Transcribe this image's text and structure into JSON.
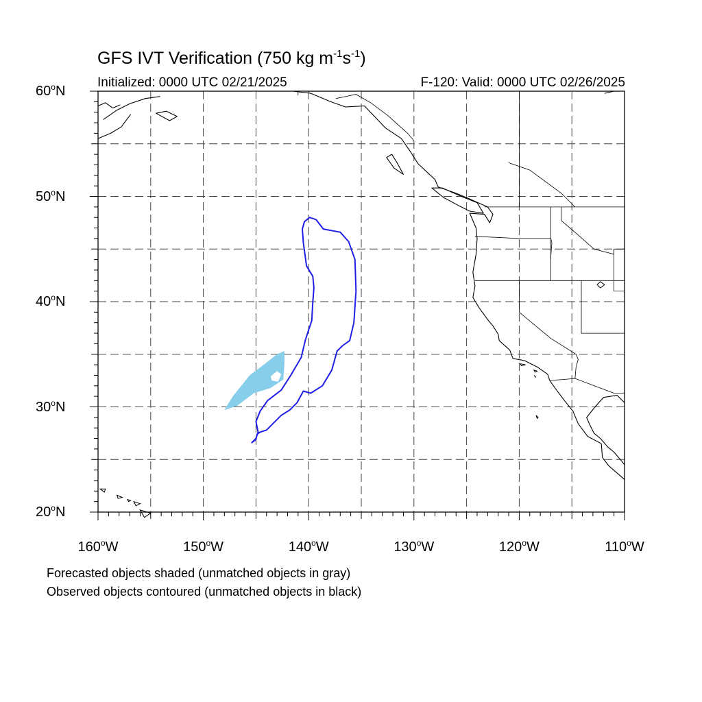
{
  "title": {
    "main_prefix": "GFS IVT Verification (750 kg m",
    "exp1": "-1",
    "mid": "s",
    "exp2": "-1",
    "suffix": ")"
  },
  "subtitle": {
    "initialized": "Initialized: 0000 UTC 02/21/2025",
    "valid": "F-120: Valid: 0000 UTC 02/26/2025"
  },
  "map": {
    "lon_range": [
      -160,
      -110
    ],
    "lat_range": [
      20,
      60
    ],
    "grid": "dashed every 5 degrees",
    "lat_labels": [
      {
        "lat": 60,
        "num": "60",
        "suffix": "N"
      },
      {
        "lat": 50,
        "num": "50",
        "suffix": "N"
      },
      {
        "lat": 40,
        "num": "40",
        "suffix": "N"
      },
      {
        "lat": 30,
        "num": "30",
        "suffix": "N"
      },
      {
        "lat": 20,
        "num": "20",
        "suffix": "N"
      }
    ],
    "lon_labels": [
      {
        "lon": -160,
        "num": "160",
        "suffix": "W"
      },
      {
        "lon": -150,
        "num": "150",
        "suffix": "W"
      },
      {
        "lon": -140,
        "num": "140",
        "suffix": "W"
      },
      {
        "lon": -130,
        "num": "130",
        "suffix": "W"
      },
      {
        "lon": -120,
        "num": "120",
        "suffix": "W"
      },
      {
        "lon": -110,
        "num": "110",
        "suffix": "W"
      }
    ],
    "colors": {
      "forecast_fill": "#87ceeb",
      "observed_contour": "#1f1fe6",
      "coast": "#000000"
    },
    "forecast_object": [
      [
        -148.0,
        29.7
      ],
      [
        -147.2,
        31.0
      ],
      [
        -145.6,
        33.0
      ],
      [
        -144.4,
        33.9
      ],
      [
        -143.0,
        35.0
      ],
      [
        -142.3,
        35.3
      ],
      [
        -142.3,
        34.1
      ],
      [
        -142.4,
        32.6
      ],
      [
        -143.6,
        31.8
      ],
      [
        -145.2,
        31.3
      ],
      [
        -146.8,
        30.1
      ],
      [
        -148.0,
        29.7
      ]
    ],
    "forecast_hole": [
      [
        -143.6,
        32.9
      ],
      [
        -143.0,
        33.4
      ],
      [
        -142.6,
        33.1
      ],
      [
        -142.9,
        32.4
      ],
      [
        -143.5,
        32.5
      ]
    ],
    "observed_object": [
      [
        -140.4,
        47.6
      ],
      [
        -139.9,
        48.0
      ],
      [
        -139.3,
        47.8
      ],
      [
        -138.6,
        46.9
      ],
      [
        -137.0,
        46.6
      ],
      [
        -136.2,
        45.7
      ],
      [
        -135.6,
        44.0
      ],
      [
        -135.5,
        41.0
      ],
      [
        -135.7,
        38.0
      ],
      [
        -136.1,
        36.3
      ],
      [
        -136.8,
        35.8
      ],
      [
        -137.3,
        35.3
      ],
      [
        -137.8,
        33.5
      ],
      [
        -138.7,
        32.0
      ],
      [
        -139.8,
        31.3
      ],
      [
        -140.5,
        31.5
      ],
      [
        -141.1,
        30.4
      ],
      [
        -141.8,
        29.7
      ],
      [
        -142.6,
        29.2
      ],
      [
        -143.4,
        28.4
      ],
      [
        -144.0,
        27.8
      ],
      [
        -144.6,
        27.6
      ],
      [
        -144.9,
        27.4
      ],
      [
        -145.0,
        26.9
      ],
      [
        -145.4,
        26.6
      ],
      [
        -145.0,
        27.0
      ],
      [
        -144.8,
        27.6
      ],
      [
        -145.0,
        28.6
      ],
      [
        -144.6,
        29.6
      ],
      [
        -143.9,
        30.6
      ],
      [
        -142.6,
        31.6
      ],
      [
        -141.7,
        33.0
      ],
      [
        -140.7,
        34.7
      ],
      [
        -140.3,
        36.4
      ],
      [
        -139.7,
        38.2
      ],
      [
        -139.6,
        40.0
      ],
      [
        -139.5,
        41.3
      ],
      [
        -139.6,
        42.4
      ],
      [
        -140.2,
        43.4
      ],
      [
        -140.5,
        45.6
      ],
      [
        -140.6,
        46.9
      ],
      [
        -140.4,
        47.6
      ]
    ],
    "coast_lines": [
      [
        [
          -110.0,
          23.1
        ],
        [
          -111.5,
          24.4
        ],
        [
          -112.1,
          25.2
        ],
        [
          -112.2,
          26.5
        ],
        [
          -113.5,
          27.2
        ],
        [
          -114.4,
          28.4
        ],
        [
          -114.9,
          29.6
        ],
        [
          -115.7,
          30.6
        ],
        [
          -116.6,
          31.8
        ],
        [
          -117.1,
          32.5
        ],
        [
          -117.3,
          33.1
        ],
        [
          -118.3,
          33.8
        ],
        [
          -119.5,
          34.4
        ],
        [
          -120.6,
          34.6
        ],
        [
          -120.9,
          35.4
        ],
        [
          -121.9,
          36.3
        ],
        [
          -122.0,
          36.9
        ],
        [
          -122.5,
          37.7
        ],
        [
          -123.0,
          38.3
        ],
        [
          -123.8,
          39.4
        ],
        [
          -124.4,
          40.4
        ],
        [
          -124.2,
          41.5
        ],
        [
          -124.4,
          42.8
        ],
        [
          -124.1,
          44.5
        ],
        [
          -124.0,
          46.0
        ],
        [
          -124.1,
          47.0
        ],
        [
          -124.7,
          48.4
        ],
        [
          -123.3,
          48.3
        ],
        [
          -122.8,
          47.5
        ],
        [
          -122.5,
          48.3
        ],
        [
          -123.0,
          49.0
        ],
        [
          -124.8,
          49.8
        ],
        [
          -126.0,
          50.3
        ],
        [
          -127.7,
          50.9
        ],
        [
          -128.0,
          51.6
        ],
        [
          -129.6,
          53.1
        ],
        [
          -130.3,
          54.2
        ],
        [
          -131.2,
          55.5
        ],
        [
          -132.7,
          56.5
        ],
        [
          -134.7,
          58.6
        ],
        [
          -136.5,
          58.5
        ],
        [
          -137.9,
          59.0
        ],
        [
          -139.8,
          59.8
        ],
        [
          -141.5,
          60.0
        ]
      ],
      [
        [
          -110.0,
          30.4
        ],
        [
          -110.7,
          31.1
        ],
        [
          -112.0,
          30.9
        ],
        [
          -112.8,
          30.0
        ],
        [
          -113.6,
          29.0
        ],
        [
          -113.3,
          28.3
        ],
        [
          -112.9,
          27.5
        ],
        [
          -112.3,
          27.0
        ],
        [
          -111.6,
          26.2
        ],
        [
          -111.0,
          25.7
        ],
        [
          -110.4,
          25.0
        ],
        [
          -110.0,
          24.5
        ]
      ],
      [
        [
          -125.5,
          50.0
        ],
        [
          -124.0,
          49.4
        ],
        [
          -123.4,
          48.4
        ],
        [
          -124.7,
          48.6
        ],
        [
          -125.7,
          49.1
        ],
        [
          -127.2,
          49.9
        ],
        [
          -128.3,
          50.8
        ],
        [
          -127.3,
          50.8
        ],
        [
          -125.5,
          50.0
        ]
      ],
      [
        [
          -132.1,
          54.0
        ],
        [
          -131.6,
          53.2
        ],
        [
          -131.0,
          52.1
        ],
        [
          -131.9,
          52.7
        ],
        [
          -132.6,
          53.7
        ],
        [
          -132.1,
          54.0
        ]
      ],
      [
        [
          -159.5,
          57.3
        ],
        [
          -158.2,
          58.2
        ],
        [
          -157.0,
          58.8
        ],
        [
          -155.5,
          59.3
        ],
        [
          -154.1,
          59.5
        ]
      ],
      [
        [
          -160.0,
          55.5
        ],
        [
          -158.8,
          56.0
        ],
        [
          -157.8,
          56.6
        ],
        [
          -156.9,
          57.8
        ]
      ],
      [
        [
          -154.5,
          57.9
        ],
        [
          -153.2,
          57.2
        ],
        [
          -152.5,
          57.6
        ],
        [
          -153.5,
          58.1
        ],
        [
          -154.5,
          57.9
        ]
      ],
      [
        [
          -160.0,
          58.6
        ],
        [
          -159.3,
          58.9
        ],
        [
          -158.6,
          58.4
        ],
        [
          -157.9,
          58.7
        ]
      ],
      [
        [
          -111.9,
          59.8
        ],
        [
          -111.0,
          60.0
        ]
      ]
    ],
    "islands": [
      [
        [
          -159.8,
          22.2
        ],
        [
          -159.3,
          22.2
        ],
        [
          -159.4,
          21.9
        ],
        [
          -159.8,
          22.2
        ]
      ],
      [
        [
          -158.2,
          21.6
        ],
        [
          -157.7,
          21.4
        ],
        [
          -158.1,
          21.3
        ],
        [
          -158.2,
          21.6
        ]
      ],
      [
        [
          -157.2,
          21.2
        ],
        [
          -156.9,
          21.1
        ],
        [
          -157.1,
          21.0
        ],
        [
          -157.2,
          21.2
        ]
      ],
      [
        [
          -156.6,
          21.0
        ],
        [
          -156.0,
          20.8
        ],
        [
          -156.4,
          20.6
        ],
        [
          -156.6,
          21.0
        ]
      ],
      [
        [
          -156.0,
          20.2
        ],
        [
          -155.0,
          19.9
        ],
        [
          -155.6,
          19.5
        ],
        [
          -156.0,
          20.2
        ]
      ],
      [
        [
          -119.9,
          34.1
        ],
        [
          -119.4,
          34.0
        ],
        [
          -119.8,
          33.9
        ],
        [
          -119.9,
          34.1
        ]
      ],
      [
        [
          -118.6,
          33.5
        ],
        [
          -118.3,
          33.4
        ],
        [
          -118.5,
          33.3
        ],
        [
          -118.6,
          33.5
        ]
      ],
      [
        [
          -118.6,
          33.0
        ],
        [
          -118.4,
          32.8
        ],
        [
          -118.5,
          32.9
        ],
        [
          -118.6,
          33.0
        ]
      ],
      [
        [
          -118.4,
          29.2
        ],
        [
          -118.2,
          29.0
        ],
        [
          -118.3,
          28.9
        ],
        [
          -118.4,
          29.2
        ]
      ],
      [
        [
          -112.3,
          41.3
        ],
        [
          -112.6,
          41.6
        ],
        [
          -112.3,
          41.9
        ],
        [
          -111.9,
          41.6
        ],
        [
          -112.3,
          41.3
        ]
      ]
    ],
    "borders": [
      [
        [
          -123.3,
          49.0
        ],
        [
          -110.0,
          49.0
        ]
      ],
      [
        [
          -124.2,
          46.2
        ],
        [
          -120.0,
          46.0
        ],
        [
          -117.0,
          46.0
        ],
        [
          -116.9,
          45.6
        ],
        [
          -117.0,
          44.3
        ],
        [
          -117.0,
          42.0
        ]
      ],
      [
        [
          -124.2,
          42.0
        ],
        [
          -110.0,
          42.0
        ]
      ],
      [
        [
          -117.0,
          49.0
        ],
        [
          -117.0,
          44.0
        ]
      ],
      [
        [
          -116.0,
          49.0
        ],
        [
          -116.0,
          47.7
        ],
        [
          -114.6,
          46.5
        ],
        [
          -112.9,
          45.0
        ],
        [
          -111.0,
          44.5
        ],
        [
          -111.0,
          45.0
        ],
        [
          -110.0,
          45.0
        ]
      ],
      [
        [
          -111.0,
          45.0
        ],
        [
          -111.0,
          41.0
        ],
        [
          -110.0,
          41.0
        ]
      ],
      [
        [
          -120.0,
          42.0
        ],
        [
          -120.0,
          39.0
        ],
        [
          -117.0,
          36.5
        ],
        [
          -114.6,
          35.0
        ],
        [
          -114.4,
          34.5
        ],
        [
          -114.6,
          33.8
        ],
        [
          -114.7,
          32.7
        ]
      ],
      [
        [
          -114.1,
          42.0
        ],
        [
          -114.1,
          37.0
        ],
        [
          -110.0,
          37.0
        ]
      ],
      [
        [
          -117.1,
          32.5
        ],
        [
          -114.7,
          32.7
        ],
        [
          -111.0,
          31.3
        ],
        [
          -110.0,
          31.3
        ]
      ],
      [
        [
          -141.0,
          60.0
        ],
        [
          -141.0,
          59.6
        ]
      ],
      [
        [
          -137.4,
          59.3
        ],
        [
          -135.5,
          59.7
        ],
        [
          -134.1,
          58.9
        ],
        [
          -132.5,
          57.7
        ],
        [
          -130.6,
          56.0
        ],
        [
          -130.0,
          55.3
        ]
      ],
      [
        [
          -120.0,
          60.0
        ],
        [
          -120.0,
          49.0
        ]
      ],
      [
        [
          -121.0,
          53.2
        ],
        [
          -119.0,
          52.5
        ],
        [
          -116.0,
          50.3
        ],
        [
          -114.7,
          49.0
        ]
      ]
    ]
  }
}
